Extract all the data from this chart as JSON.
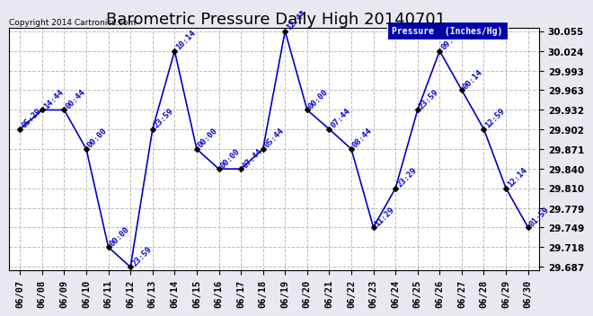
{
  "title": "Barometric Pressure Daily High 20140701",
  "copyright_text": "Copyright 2014 Cartronics.com",
  "legend_label": "Pressure  (Inches/Hg)",
  "background_color": "#e8e8f0",
  "plot_bg_color": "#ffffff",
  "line_color": "#0000cc",
  "marker_color": "#000000",
  "text_color": "#0000cc",
  "title_color": "#000000",
  "dates": [
    "06/07",
    "06/08",
    "06/09",
    "06/10",
    "06/11",
    "06/12",
    "06/13",
    "06/14",
    "06/15",
    "06/16",
    "06/17",
    "06/18",
    "06/19",
    "06/20",
    "06/21",
    "06/22",
    "06/23",
    "06/24",
    "06/25",
    "06/26",
    "06/27",
    "06/28",
    "06/29",
    "06/30"
  ],
  "values": [
    29.902,
    29.932,
    29.932,
    29.871,
    29.718,
    29.687,
    29.902,
    30.024,
    29.871,
    29.84,
    29.84,
    29.871,
    30.055,
    29.932,
    29.902,
    29.871,
    29.749,
    29.81,
    29.932,
    30.024,
    29.963,
    29.902,
    29.81,
    29.749
  ],
  "annotations": [
    "05:29",
    "14:44",
    "00:44",
    "00:00",
    "00:00",
    "23:59",
    "23:59",
    "10:14",
    "00:00",
    "00:00",
    "07:44",
    "05:44",
    "12:44",
    "00:00",
    "07:44",
    "08:44",
    "11:29",
    "23:29",
    "23:59",
    "09:29",
    "00:14",
    "12:59",
    "12:14",
    "01:59"
  ],
  "ylim_min": 29.687,
  "ylim_max": 30.055,
  "yticks": [
    29.687,
    29.718,
    29.749,
    29.779,
    29.81,
    29.84,
    29.871,
    29.902,
    29.932,
    29.963,
    29.993,
    30.024,
    30.055
  ],
  "grid_color": "#bbbbbb",
  "title_fontsize": 13,
  "tick_fontsize": 7.5,
  "annotation_fontsize": 6.5,
  "legend_bg_color": "#0000aa",
  "legend_text_color": "#ffffff",
  "copyright_fontsize": 6.5
}
